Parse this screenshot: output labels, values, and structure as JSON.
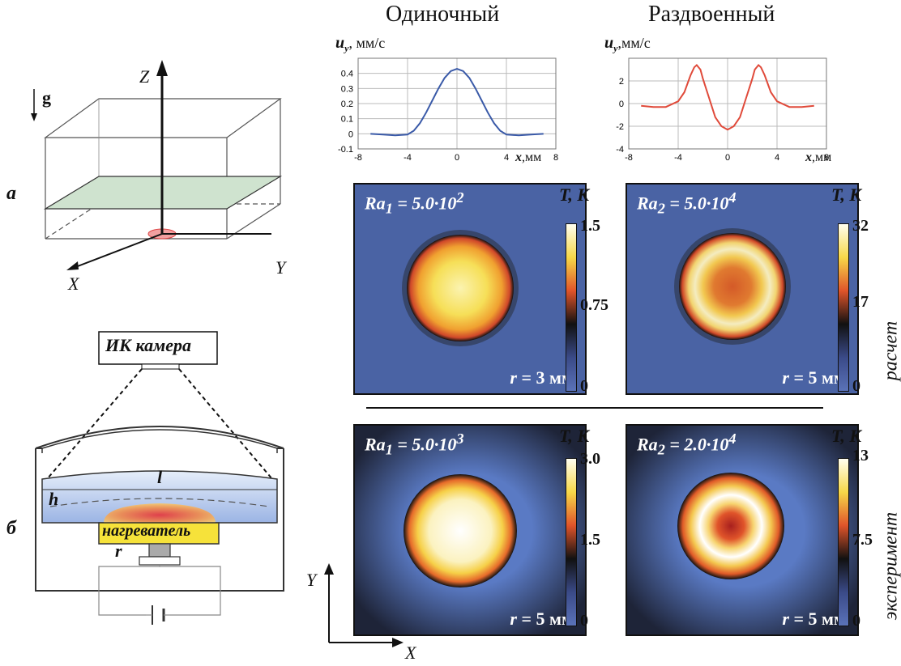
{
  "columns": {
    "single": "Одиночный",
    "split": "Раздвоенный"
  },
  "panel_labels": {
    "a": "а",
    "b": "б"
  },
  "schematic_a": {
    "axis_z": "Z",
    "axis_x": "X",
    "axis_y": "Y",
    "gravity": "g"
  },
  "schematic_b": {
    "camera": "ИК камера",
    "heater": "нагреватель",
    "label_l": "l",
    "label_h": "h",
    "label_r": "r"
  },
  "chart_data": [
    {
      "type": "line",
      "ylabel_symbol": "u",
      "ylabel_sub": "y",
      "ylabel_unit": ", мм/с",
      "xlabel_symbol": "x",
      "xlabel_unit": ",мм",
      "xlim": [
        -8,
        8
      ],
      "ylim": [
        -0.1,
        0.5
      ],
      "xticks": [
        "-8",
        "-4",
        "0",
        "4",
        "8"
      ],
      "yticks": [
        "-0.1",
        "0",
        "0.1",
        "0.2",
        "0.3",
        "0.4"
      ],
      "color": "#3a5aa8",
      "x": [
        -7,
        -6,
        -5,
        -4,
        -3.5,
        -3,
        -2.5,
        -2,
        -1.5,
        -1,
        -0.5,
        0,
        0.5,
        1,
        1.5,
        2,
        2.5,
        3,
        3.5,
        4,
        5,
        6,
        7
      ],
      "y": [
        0.0,
        -0.005,
        -0.01,
        -0.005,
        0.02,
        0.07,
        0.14,
        0.22,
        0.3,
        0.37,
        0.415,
        0.43,
        0.415,
        0.37,
        0.3,
        0.22,
        0.14,
        0.07,
        0.02,
        -0.005,
        -0.01,
        -0.005,
        0.0
      ]
    },
    {
      "type": "line",
      "ylabel_symbol": "u",
      "ylabel_sub": "y",
      "ylabel_unit": ",мм/с",
      "xlabel_symbol": "x",
      "xlabel_unit": ",мм",
      "xlim": [
        -8,
        8
      ],
      "ylim": [
        -4,
        4
      ],
      "xticks": [
        "-8",
        "-4",
        "0",
        "4",
        "8"
      ],
      "yticks": [
        "-4",
        "-2",
        "0",
        "2"
      ],
      "color": "#e04a3a",
      "x": [
        -7,
        -6,
        -5,
        -4,
        -3.5,
        -3,
        -2.7,
        -2.5,
        -2.2,
        -2,
        -1.5,
        -1,
        -0.5,
        0,
        0.5,
        1,
        1.5,
        2,
        2.2,
        2.5,
        2.7,
        3,
        3.5,
        4,
        5,
        6,
        7
      ],
      "y": [
        -0.2,
        -0.3,
        -0.3,
        0.2,
        1.0,
        2.5,
        3.2,
        3.4,
        3.0,
        2.2,
        0.5,
        -1.2,
        -2.0,
        -2.3,
        -2.0,
        -1.2,
        0.5,
        2.2,
        3.0,
        3.4,
        3.2,
        2.5,
        1.0,
        0.2,
        -0.3,
        -0.3,
        -0.2
      ]
    }
  ],
  "maps": [
    {
      "ra_sym": "Ra",
      "ra_sub": "1",
      "ra_val": " = 5.0·10",
      "ra_exp": "2",
      "r_label": "r",
      "r_val": " = 3 мм",
      "cb_label": "T, K",
      "cb_max": "1.5",
      "cb_mid": "0.75",
      "cb_min": "0"
    },
    {
      "ra_sym": "Ra",
      "ra_sub": "2",
      "ra_val": " = 5.0·10",
      "ra_exp": "4",
      "r_label": "r",
      "r_val": " = 5 мм",
      "cb_label": "T, K",
      "cb_max": "32",
      "cb_mid": "17",
      "cb_min": "0"
    },
    {
      "ra_sym": "Ra",
      "ra_sub": "1",
      "ra_val": " = 5.0·10",
      "ra_exp": "3",
      "r_label": "r",
      "r_val": " = 5 мм",
      "cb_label": "T, K",
      "cb_max": "3.0",
      "cb_mid": "1.5",
      "cb_min": "0"
    },
    {
      "ra_sym": "Ra",
      "ra_sub": "2",
      "ra_val": " = 2.0·10",
      "ra_exp": "4",
      "r_label": "r",
      "r_val": " = 5 мм",
      "cb_label": "T, K",
      "cb_max": "13",
      "cb_mid": "7.5",
      "cb_min": "0"
    }
  ],
  "row_labels": {
    "calc": "расчет",
    "exp": "эксперимент"
  },
  "xy_axes": {
    "x": "X",
    "y": "Y"
  }
}
